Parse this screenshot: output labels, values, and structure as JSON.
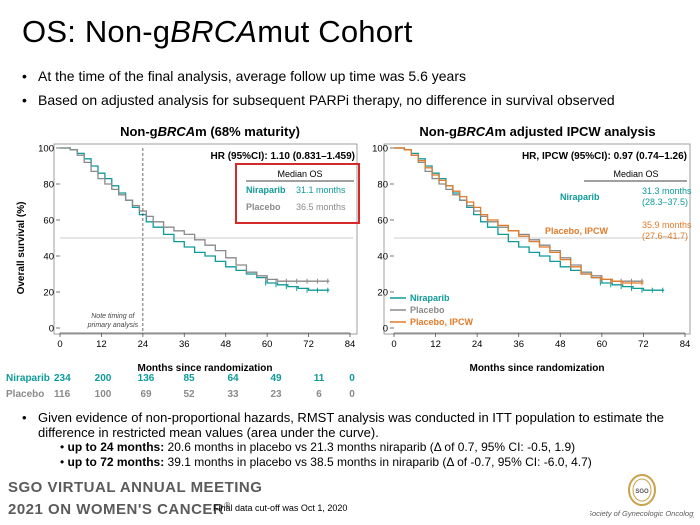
{
  "slide": {
    "title_prefix": "OS: Non-g",
    "title_italic": "BRCA",
    "title_suffix": "mut Cohort",
    "bullets": [
      "At the time of the final analysis, average follow up time was 5.6 years",
      "Based on adjusted analysis for subsequent PARPi therapy, no difference in survival observed"
    ],
    "bottom_bullet": "Given evidence of non-proportional hazards, RMST analysis was conducted in ITT population to estimate the difference in restricted mean values (area under the curve).",
    "sub_bullets": [
      {
        "bold": "up to 24 months:",
        "text": " 20.6 months in placebo vs 21.3 months niraparib (Δ of 0.7, 95% CI: -0.5, 1.9)"
      },
      {
        "bold": "up to 72 months:",
        "text": " 39.1 months in placebo vs 38.5 months in niraparib (Δ of -0.7, 95% CI: -6.0, 4.7)"
      }
    ],
    "footer_line1": "SGO   VIRTUAL ANNUAL MEETING",
    "footer_line2": "2021   ON WOMEN'S CANCER",
    "footer_reg": "®",
    "footer_note": "Final data cut-off was Oct 1, 2020",
    "society_name": "Society of Gynecologic Oncology",
    "society_short": "SGO"
  },
  "colors": {
    "niraparib": "#0e9a9a",
    "placebo": "#8a8a8a",
    "placebo_ipcw": "#e07b2a",
    "highlight_box": "#d62a2a"
  },
  "chart_data": [
    {
      "type": "line",
      "title_prefix": "Non-g",
      "title_italic": "BRCA",
      "title_suffix": "m (68% maturity)",
      "xlabel": "Months since randomization",
      "ylabel": "Overall survival (%)",
      "xlim": [
        0,
        84
      ],
      "ylim": [
        0,
        100
      ],
      "xticks": [
        0,
        12,
        24,
        36,
        48,
        60,
        72,
        84
      ],
      "yticks": [
        0,
        20,
        40,
        60,
        80,
        100
      ],
      "hr_text": "HR (95%CI): 1.10 (0.831–1.459)",
      "median_header": "Median OS",
      "median_rows": [
        {
          "label": "Niraparib",
          "value": "31.1 months"
        },
        {
          "label": "Placebo",
          "value": "36.5 months"
        }
      ],
      "annotation": [
        "Note timing of",
        "primary analysis"
      ],
      "annotation_x": 24,
      "series": [
        {
          "name": "Niraparib",
          "x": [
            0,
            3,
            5,
            7,
            9,
            11,
            13,
            15,
            17,
            19,
            21,
            23,
            25,
            27,
            30,
            33,
            36,
            39,
            42,
            45,
            48,
            51,
            54,
            57,
            60,
            63,
            66,
            69,
            72,
            75,
            78
          ],
          "y": [
            100,
            99,
            97,
            94,
            90,
            86,
            83,
            79,
            75,
            71,
            67,
            63,
            59,
            56,
            52,
            48,
            45,
            42,
            40,
            37,
            34,
            32,
            30,
            28,
            25,
            24,
            23,
            22,
            21,
            21,
            21
          ]
        },
        {
          "name": "Placebo",
          "x": [
            0,
            3,
            5,
            7,
            9,
            11,
            13,
            15,
            17,
            19,
            21,
            23,
            25,
            27,
            30,
            33,
            36,
            39,
            42,
            45,
            48,
            51,
            54,
            57,
            60,
            63,
            66,
            69,
            72,
            75,
            78
          ],
          "y": [
            100,
            99,
            96,
            92,
            87,
            83,
            80,
            77,
            74,
            71,
            68,
            65,
            62,
            59,
            56,
            54,
            52,
            49,
            46,
            43,
            39,
            35,
            31,
            29,
            27,
            26,
            26,
            26,
            26,
            26,
            26
          ]
        }
      ],
      "risk_table": {
        "times": [
          0,
          12,
          24,
          36,
          48,
          60,
          72,
          84
        ],
        "rows": [
          {
            "label": "Niraparib",
            "n": "234",
            "values": [
              "200",
              "136",
              "85",
              "64",
              "49",
              "11",
              "0"
            ]
          },
          {
            "label": "Placebo",
            "n": "116",
            "values": [
              "100",
              "69",
              "52",
              "33",
              "23",
              "6",
              "0"
            ]
          }
        ]
      }
    },
    {
      "type": "line",
      "title_prefix": "Non-g",
      "title_italic": "BRCA",
      "title_suffix": "m adjusted IPCW analysis",
      "xlabel": "Months since randomization",
      "ylabel": "",
      "xlim": [
        0,
        84
      ],
      "ylim": [
        0,
        100
      ],
      "xticks": [
        0,
        12,
        24,
        36,
        48,
        60,
        72,
        84
      ],
      "yticks": [
        0,
        20,
        40,
        60,
        80,
        100
      ],
      "hr_text": "HR, IPCW (95%CI): 0.97 (0.74–1.26)",
      "median_header": "Median OS",
      "median_rows": [
        {
          "label": "Niraparib",
          "value": "31.3 months",
          "ci": "(28.3–37.5)"
        },
        {
          "label": "Placebo, IPCW",
          "value": "35.9 months",
          "ci": "(27.6–41.7)"
        }
      ],
      "legend": [
        "Niraparib",
        "Placebo",
        "Placebo, IPCW"
      ],
      "series": [
        {
          "name": "Niraparib",
          "x": [
            0,
            3,
            5,
            7,
            9,
            11,
            13,
            15,
            17,
            19,
            21,
            23,
            25,
            27,
            30,
            33,
            36,
            39,
            42,
            45,
            48,
            51,
            54,
            57,
            60,
            63,
            66,
            69,
            72,
            75,
            78
          ],
          "y": [
            100,
            99,
            97,
            94,
            90,
            86,
            83,
            79,
            75,
            71,
            67,
            63,
            59,
            56,
            52,
            48,
            45,
            42,
            40,
            37,
            34,
            32,
            30,
            28,
            25,
            24,
            23,
            22,
            21,
            21,
            21
          ]
        },
        {
          "name": "Placebo",
          "x": [
            0,
            3,
            5,
            7,
            9,
            11,
            13,
            15,
            17,
            19,
            21,
            23,
            25,
            27,
            30,
            33,
            36,
            39,
            42,
            45,
            48,
            51,
            54,
            57,
            60,
            63,
            66,
            69,
            72
          ],
          "y": [
            100,
            99,
            96,
            92,
            87,
            83,
            80,
            77,
            74,
            71,
            68,
            65,
            62,
            59,
            56,
            54,
            52,
            49,
            46,
            43,
            39,
            35,
            31,
            29,
            27,
            26,
            26,
            26,
            26
          ]
        },
        {
          "name": "Placebo, IPCW",
          "x": [
            0,
            3,
            5,
            7,
            9,
            11,
            13,
            15,
            17,
            19,
            21,
            23,
            25,
            27,
            30,
            33,
            36,
            39,
            42,
            45,
            48,
            51,
            54,
            57,
            60,
            63,
            66,
            69,
            72
          ],
          "y": [
            100,
            99,
            96,
            93,
            89,
            85,
            82,
            79,
            76,
            73,
            70,
            67,
            63,
            60,
            57,
            54,
            51,
            48,
            45,
            42,
            38,
            34,
            30,
            28,
            27,
            26,
            25,
            25,
            25
          ]
        }
      ]
    }
  ]
}
